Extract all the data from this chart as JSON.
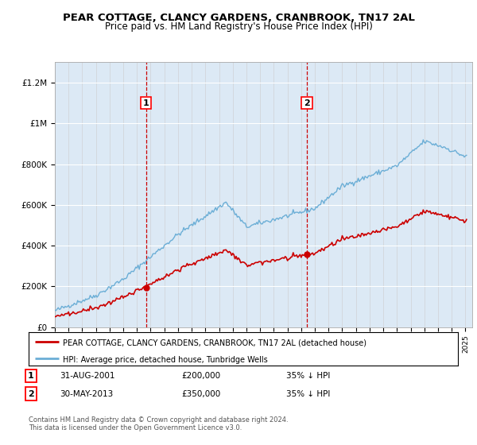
{
  "title": "PEAR COTTAGE, CLANCY GARDENS, CRANBROOK, TN17 2AL",
  "subtitle": "Price paid vs. HM Land Registry's House Price Index (HPI)",
  "background_color": "#dce9f5",
  "ylim": [
    0,
    1300000
  ],
  "yticks": [
    0,
    200000,
    400000,
    600000,
    800000,
    1000000,
    1200000
  ],
  "ytick_labels": [
    "£0",
    "£200K",
    "£400K",
    "£600K",
    "£800K",
    "£1M",
    "£1.2M"
  ],
  "sale1_date": 2001.66,
  "sale1_price": 200000,
  "sale2_date": 2013.41,
  "sale2_price": 350000,
  "legend_house": "PEAR COTTAGE, CLANCY GARDENS, CRANBROOK, TN17 2AL (detached house)",
  "legend_hpi": "HPI: Average price, detached house, Tunbridge Wells",
  "footnote": "Contains HM Land Registry data © Crown copyright and database right 2024.\nThis data is licensed under the Open Government Licence v3.0.",
  "house_color": "#cc0000",
  "hpi_color": "#6baed6",
  "dashed_line_color": "#cc0000"
}
